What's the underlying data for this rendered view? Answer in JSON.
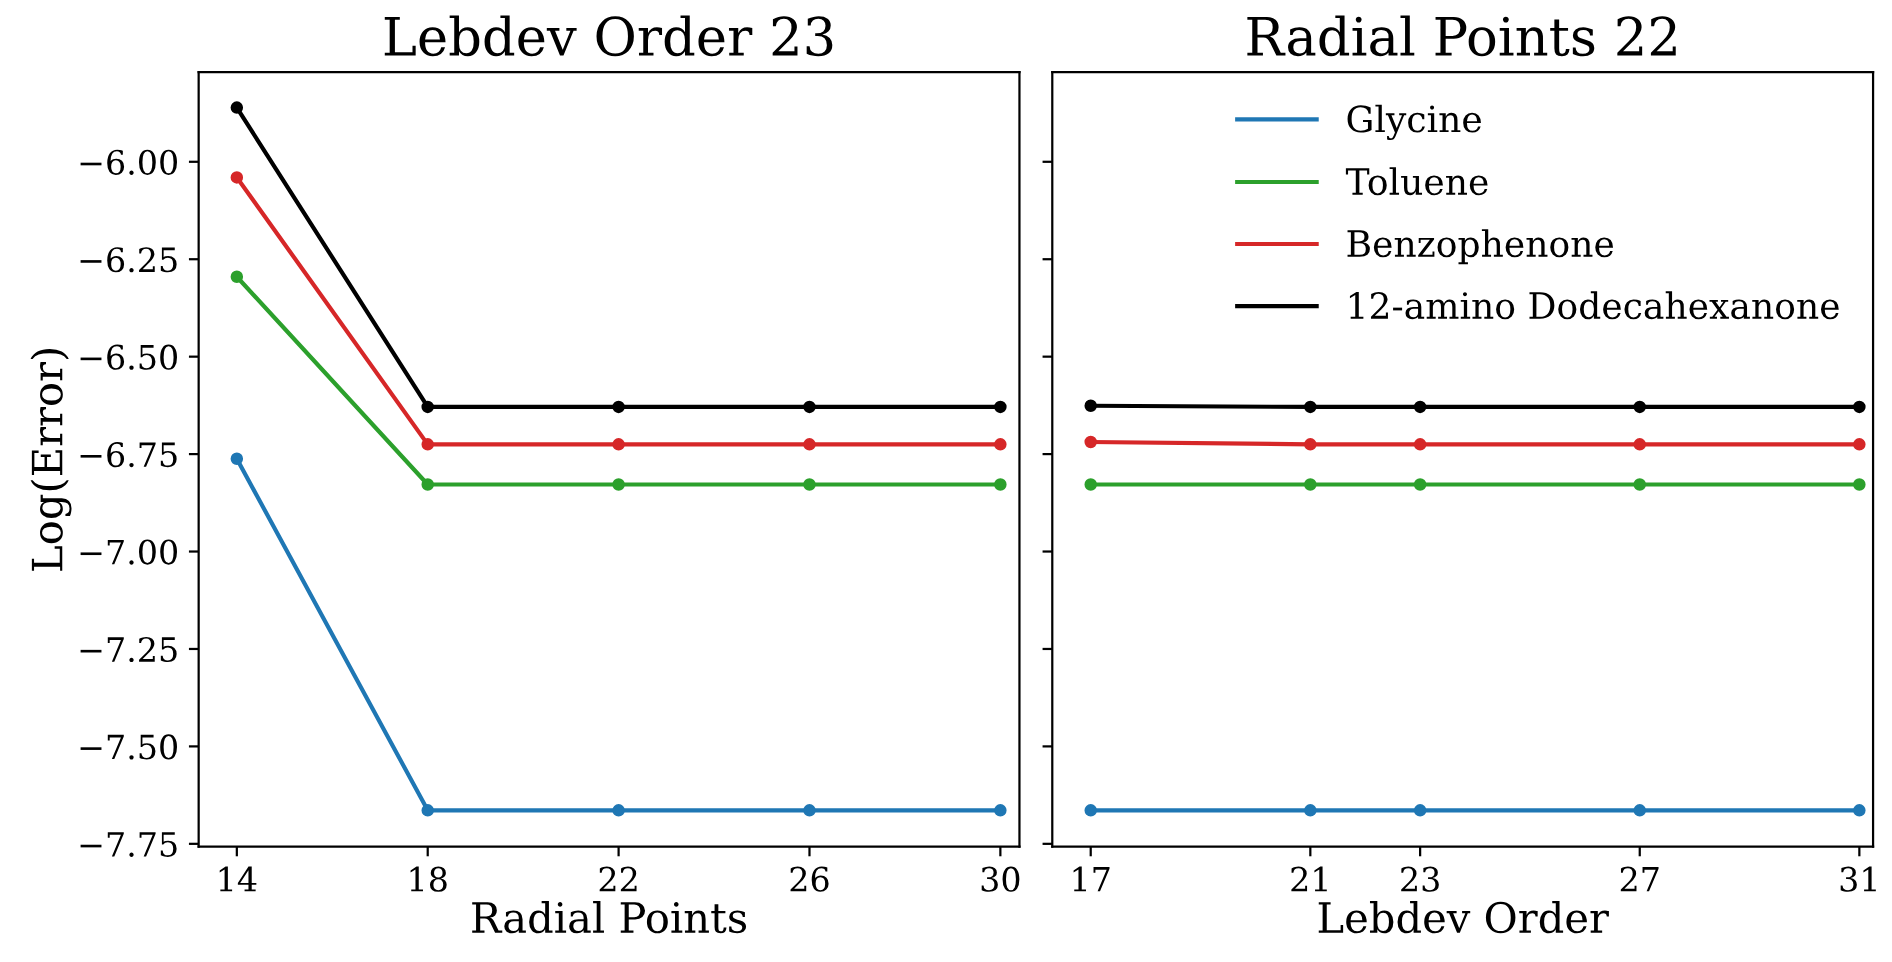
{
  "chart_data": [
    {
      "type": "line",
      "title": "Lebdev Order 23",
      "xlabel": "Radial Points",
      "ylabel": "Log(Error)",
      "x": [
        14,
        18,
        22,
        26,
        30
      ],
      "xlim": [
        13.2,
        30.4
      ],
      "xticks": [
        14,
        18,
        22,
        26,
        30
      ],
      "ylim": [
        -7.757,
        -5.77
      ],
      "yticks": [
        {
          "value": -6.0,
          "label": "−6.00"
        },
        {
          "value": -6.25,
          "label": "−6.25"
        },
        {
          "value": -6.5,
          "label": "−6.50"
        },
        {
          "value": -6.75,
          "label": "−6.75"
        },
        {
          "value": -7.0,
          "label": "−7.00"
        },
        {
          "value": -7.25,
          "label": "−7.25"
        },
        {
          "value": -7.5,
          "label": "−7.50"
        },
        {
          "value": -7.75,
          "label": "−7.75"
        }
      ],
      "marker": "circle",
      "grid": false,
      "legend": false,
      "series": [
        {
          "color": "#1f77b4",
          "values": [
            -6.762,
            -7.664,
            -7.664,
            -7.664,
            -7.664
          ]
        },
        {
          "color": "#2ca02c",
          "values": [
            -6.295,
            -6.828,
            -6.828,
            -6.828,
            -6.828
          ]
        },
        {
          "color": "#d62728",
          "values": [
            -6.04,
            -6.725,
            -6.725,
            -6.725,
            -6.725
          ]
        },
        {
          "color": "#000000",
          "values": [
            -5.861,
            -6.629,
            -6.629,
            -6.629,
            -6.629
          ]
        }
      ]
    },
    {
      "type": "line",
      "title": "Radial Points 22",
      "xlabel": "Lebdev Order",
      "x": [
        17,
        21,
        23,
        27,
        31
      ],
      "xlim": [
        16.3,
        31.25
      ],
      "xticks": [
        17,
        21,
        23,
        27,
        31
      ],
      "ylim": [
        -7.757,
        -5.77
      ],
      "yticks": [
        {
          "value": -6.0,
          "label": null
        },
        {
          "value": -6.25,
          "label": null
        },
        {
          "value": -6.5,
          "label": null
        },
        {
          "value": -6.75,
          "label": null
        },
        {
          "value": -7.0,
          "label": null
        },
        {
          "value": -7.25,
          "label": null
        },
        {
          "value": -7.5,
          "label": null
        },
        {
          "value": -7.75,
          "label": null
        }
      ],
      "tick_labels": "x",
      "marker": "circle",
      "grid": false,
      "legend": "top right",
      "series": [
        {
          "name": "Glycine",
          "color": "#1f77b4",
          "values": [
            -7.664,
            -7.664,
            -7.664,
            -7.664,
            -7.664
          ]
        },
        {
          "name": "Toluene",
          "color": "#2ca02c",
          "values": [
            -6.828,
            -6.828,
            -6.828,
            -6.828,
            -6.828
          ]
        },
        {
          "name": "Benzophenone",
          "color": "#d62728",
          "values": [
            -6.719,
            -6.725,
            -6.725,
            -6.725,
            -6.725
          ]
        },
        {
          "name": "12-amino Dodecahexanone",
          "color": "#000000",
          "values": [
            -6.626,
            -6.629,
            -6.629,
            -6.629,
            -6.629
          ]
        }
      ]
    }
  ]
}
